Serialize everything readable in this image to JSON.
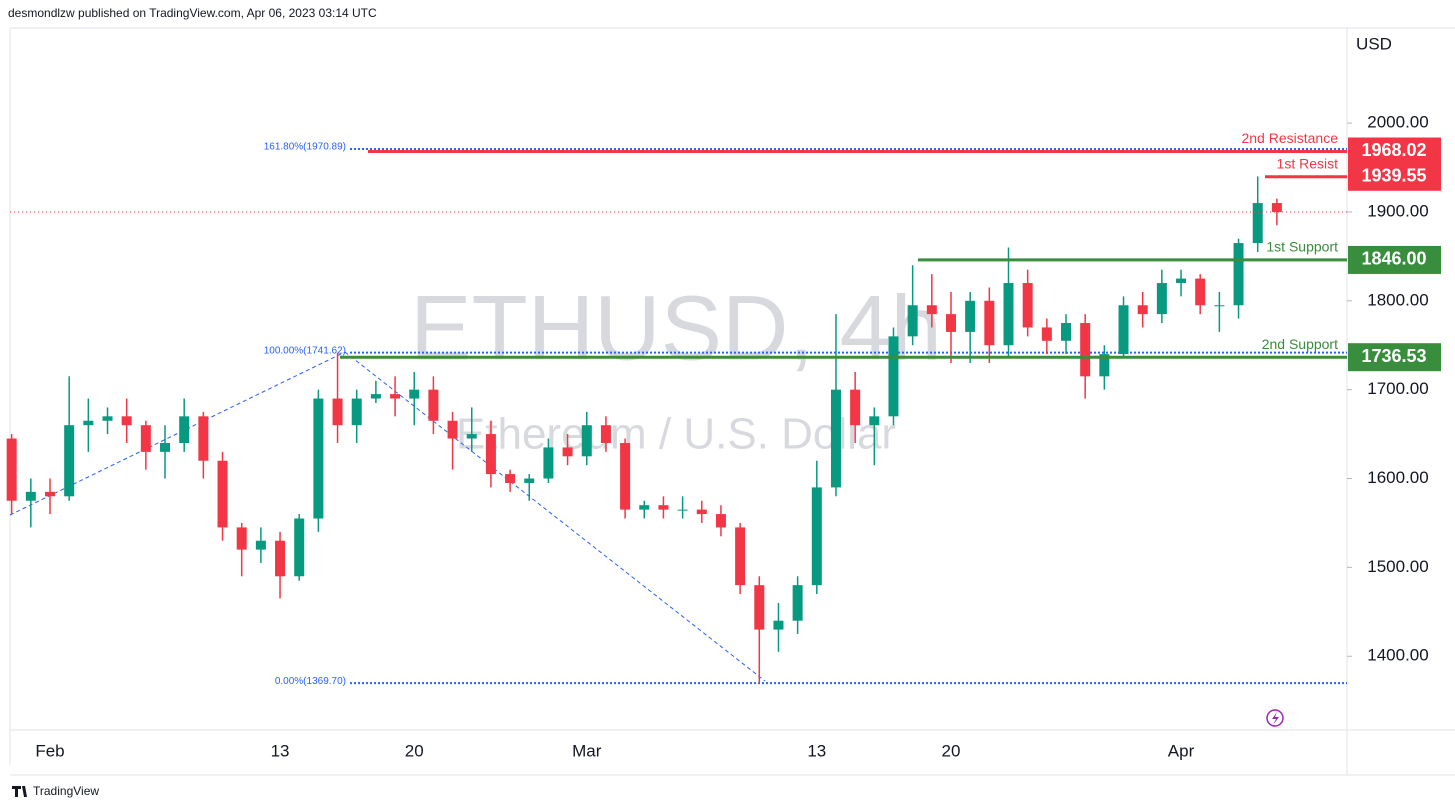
{
  "header": "desmondlzw published on TradingView.com, Apr 06, 2023 03:14 UTC",
  "footer": "TradingView",
  "chart_data": {
    "type": "candlestick",
    "title": "ETHUSD, 4h",
    "subtitle": "Ethereum / U.S. Dollar",
    "currency": "USD",
    "up_color": "#089981",
    "down_color": "#f23645",
    "grid": false,
    "ylim": [
      1317,
      2107
    ],
    "yticks": [
      {
        "value": 1400,
        "label": "1400.00"
      },
      {
        "value": 1500,
        "label": "1500.00"
      },
      {
        "value": 1600,
        "label": "1600.00"
      },
      {
        "value": 1700,
        "label": "1700.00"
      },
      {
        "value": 1800,
        "label": "1800.00"
      },
      {
        "value": 1900,
        "label": "1900.00"
      },
      {
        "value": 2000,
        "label": "2000.00"
      }
    ],
    "categories": [
      null,
      null,
      "Feb",
      null,
      null,
      null,
      null,
      null,
      null,
      null,
      null,
      null,
      null,
      null,
      "13",
      null,
      null,
      null,
      null,
      null,
      null,
      "20",
      null,
      null,
      null,
      null,
      null,
      null,
      null,
      null,
      "Mar",
      null,
      null,
      null,
      null,
      null,
      null,
      null,
      null,
      null,
      null,
      null,
      "13",
      null,
      null,
      null,
      null,
      null,
      null,
      "20",
      null,
      null,
      null,
      null,
      null,
      null,
      null,
      null,
      null,
      null,
      null,
      "Apr",
      null,
      null,
      null,
      null,
      null
    ],
    "open": [
      1645,
      1575,
      1585,
      1580,
      1660,
      1665,
      1670,
      1660,
      1630,
      1640,
      1670,
      1620,
      1545,
      1520,
      1530,
      1490,
      1555,
      1690,
      1660,
      1690,
      1695,
      1690,
      1700,
      1665,
      1645,
      1650,
      1605,
      1595,
      1600,
      1635,
      1625,
      1660,
      1640,
      1565,
      1570,
      1565,
      1565,
      1560,
      1545,
      1480,
      1430,
      1440,
      1480,
      1590,
      1700,
      1660,
      1670,
      1760,
      1795,
      1785,
      1765,
      1800,
      1750,
      1820,
      1770,
      1755,
      1775,
      1715,
      1740,
      1795,
      1785,
      1820,
      1825,
      1795,
      1795,
      1865,
      1910
    ],
    "high": [
      1650,
      1600,
      1600,
      1715,
      1690,
      1680,
      1690,
      1665,
      1660,
      1690,
      1675,
      1630,
      1550,
      1545,
      1540,
      1560,
      1700,
      1741.62,
      1700,
      1710,
      1715,
      1720,
      1715,
      1675,
      1680,
      1665,
      1610,
      1605,
      1645,
      1650,
      1675,
      1670,
      1645,
      1575,
      1580,
      1580,
      1575,
      1570,
      1550,
      1490,
      1460,
      1490,
      1620,
      1785,
      1720,
      1680,
      1770,
      1840,
      1830,
      1810,
      1810,
      1815,
      1860,
      1835,
      1780,
      1785,
      1785,
      1750,
      1805,
      1810,
      1835,
      1835,
      1830,
      1810,
      1870,
      1940,
      1915
    ],
    "low": [
      1560,
      1545,
      1560,
      1575,
      1630,
      1650,
      1640,
      1610,
      1600,
      1630,
      1600,
      1530,
      1490,
      1505,
      1465,
      1485,
      1540,
      1640,
      1640,
      1685,
      1670,
      1660,
      1650,
      1610,
      1630,
      1590,
      1585,
      1575,
      1595,
      1615,
      1615,
      1630,
      1555,
      1555,
      1555,
      1555,
      1550,
      1535,
      1470,
      1369.7,
      1405,
      1425,
      1470,
      1580,
      1640,
      1615,
      1660,
      1750,
      1770,
      1730,
      1730,
      1730,
      1735,
      1760,
      1740,
      1740,
      1690,
      1700,
      1735,
      1770,
      1775,
      1805,
      1785,
      1765,
      1780,
      1855,
      1885
    ],
    "close": [
      1575,
      1585,
      1580,
      1660,
      1665,
      1670,
      1660,
      1630,
      1640,
      1670,
      1620,
      1545,
      1520,
      1530,
      1490,
      1555,
      1690,
      1660,
      1690,
      1695,
      1690,
      1700,
      1665,
      1645,
      1650,
      1605,
      1595,
      1600,
      1635,
      1625,
      1660,
      1640,
      1565,
      1570,
      1565,
      1565,
      1560,
      1545,
      1480,
      1430,
      1440,
      1480,
      1590,
      1700,
      1660,
      1670,
      1760,
      1795,
      1785,
      1765,
      1800,
      1750,
      1820,
      1770,
      1755,
      1775,
      1715,
      1740,
      1795,
      1785,
      1820,
      1825,
      1795,
      1795,
      1865,
      1910,
      1900
    ],
    "levels": {
      "names": [
        "2nd Resistance",
        "1st Resist",
        "1st Support",
        "2nd Support"
      ],
      "values": [
        1968.02,
        1939.55,
        1846,
        1736.53
      ],
      "value_labels": [
        "1968.02",
        "1939.55",
        "1846.00",
        "1736.53"
      ],
      "colors": [
        "#f23645",
        "#f23645",
        "#388e3c",
        "#388e3c"
      ]
    },
    "fib_levels": {
      "labels": [
        "161.80%(1970.89)",
        "100.00%(1741.62)",
        "0.00%(1369.70)"
      ],
      "values": [
        1970.89,
        1741.62,
        1369.7
      ],
      "color": "#2962ff"
    }
  }
}
